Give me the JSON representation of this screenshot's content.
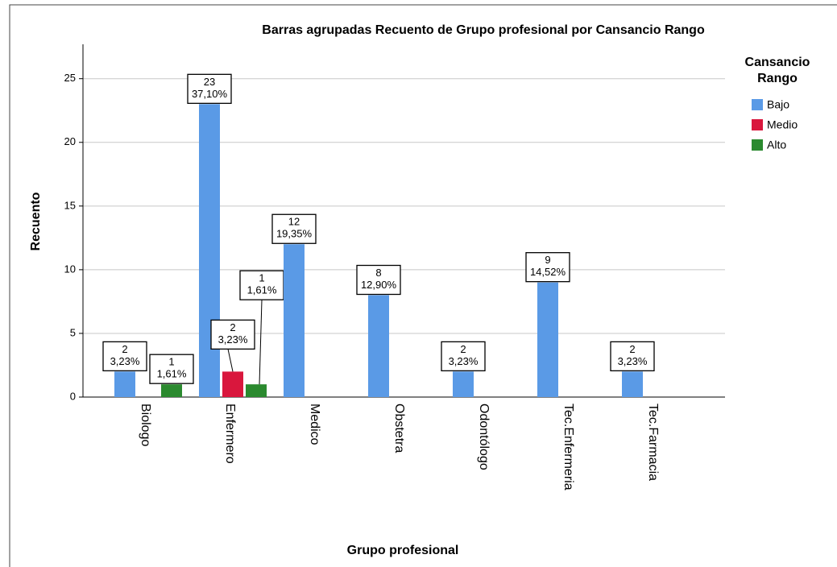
{
  "chart_data": {
    "type": "bar",
    "title": "Barras agrupadas Recuento de Grupo profesional  por Cansancio Rango",
    "x_label": "Grupo profesional",
    "y_label": "Recuento",
    "legend_title": "Cansancio Rango",
    "legend": "right",
    "categories": [
      "Biologo",
      "Enfermero",
      "Medico",
      "Obstetra",
      "Odontólogo",
      "Tec.Enfermeria",
      "Tec.Farmacia"
    ],
    "series": [
      {
        "name": "Bajo",
        "color": "#5a9ae6",
        "values": [
          2,
          23,
          12,
          8,
          2,
          9,
          2
        ],
        "percent_labels": [
          "3,23%",
          "37,10%",
          "19,35%",
          "12,90%",
          "3,23%",
          "14,52%",
          "3,23%"
        ]
      },
      {
        "name": "Medio",
        "color": "#d9173d",
        "values": [
          null,
          2,
          null,
          null,
          null,
          null,
          null
        ],
        "percent_labels": [
          null,
          "3,23%",
          null,
          null,
          null,
          null,
          null
        ]
      },
      {
        "name": "Alto",
        "color": "#2b8a2f",
        "values": [
          1,
          1,
          null,
          null,
          null,
          null,
          null
        ],
        "percent_labels": [
          "1,61%",
          "1,61%",
          null,
          null,
          null,
          null,
          null
        ]
      }
    ],
    "ylim": [
      0,
      27.7
    ],
    "yticks": [
      0,
      5,
      10,
      15,
      20,
      25
    ],
    "grid": true
  }
}
